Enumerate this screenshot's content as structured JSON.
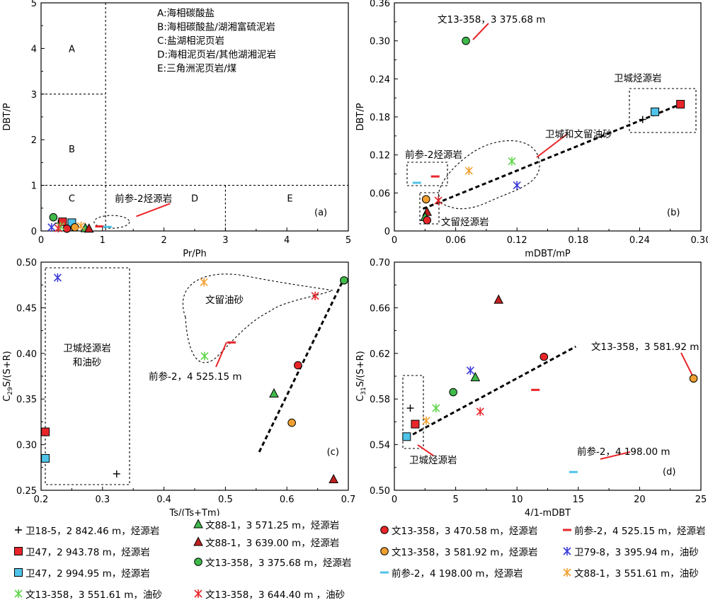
{
  "colors": {
    "wei18": "#000000",
    "wei47_1": "#e8262a",
    "wei47_2": "#4fc3e8",
    "wen88_green": "#3fb94a",
    "wen88_red": "#c0201e",
    "w13_3375": "#3fb94a",
    "w13_3470": "#e8262a",
    "w13_3581": "#f0a030",
    "qs2_4525": "#e8262a",
    "qs2_4198": "#4fc3e8",
    "wei79": "#3a3ad8",
    "w88_3551": "#f0a030",
    "w13_3551": "#5fd64a",
    "w13_3644": "#e8262a"
  },
  "legend": [
    {
      "key": "wei18",
      "marker": "plus",
      "text": "卫18-5，2 842.46 m，烃源岩"
    },
    {
      "key": "wei47_1",
      "marker": "square",
      "text": "卫47，2 943.78 m，烃源岩"
    },
    {
      "key": "wei47_2",
      "marker": "square",
      "text": "卫47，2 994.95 m，烃源岩"
    },
    {
      "key": "w13_3551",
      "marker": "x",
      "text": "文13-358，3 551.61 m，油砂"
    },
    {
      "key": "wen88_green",
      "marker": "triangle",
      "text": "文88-1，3 571.25 m，烃源岩"
    },
    {
      "key": "wen88_red",
      "marker": "triangle",
      "text": "文88-1，3 639.00 m，烃源岩"
    },
    {
      "key": "w13_3375",
      "marker": "circle",
      "text": "文13-358，3 375.68 m，烃源岩"
    },
    {
      "key": "w13_3644",
      "marker": "x",
      "text": "文13-358，3 644.40 m ，油砂"
    },
    {
      "key": "w13_3470",
      "marker": "circle",
      "text": "文13-358，3 470.58 m，烃源岩"
    },
    {
      "key": "w13_3581",
      "marker": "circle",
      "text": "文13-358，3 581.92 m，烃源岩"
    },
    {
      "key": "qs2_4198",
      "marker": "dash",
      "text": "前参-2，4 198.00 m，烃源岩"
    },
    {
      "key": "qs2_4525",
      "marker": "dash",
      "text": "前参-2，4 525.15 m，烃源岩"
    },
    {
      "key": "wei79",
      "marker": "x",
      "text": "卫79-8，3 395.94 m，油砂"
    },
    {
      "key": "w88_3551",
      "marker": "x",
      "text": "文88-1，3 551.61 m，油砂"
    }
  ],
  "chart_data": [
    {
      "panel": "(a)",
      "type": "scatter",
      "xlabel": "Pr/Ph",
      "ylabel": "DBT/P",
      "xlim": [
        0,
        5
      ],
      "ylim": [
        0,
        5
      ],
      "xticks": [
        "0",
        "1",
        "2",
        "3",
        "4",
        "5"
      ],
      "yticks": [
        "0",
        "1",
        "2",
        "3",
        "4",
        "5"
      ],
      "zone_labels": [
        "A",
        "B",
        "C",
        "D",
        "E"
      ],
      "zone_legend": [
        "A:海相碳酸盐",
        "B:海相碳酸盐/湖湘富硫泥岩",
        "C:盐湖相泥页岩",
        "D:海相泥页岩/其他湖湘泥岩",
        "E:三角洲泥页岩/煤"
      ],
      "annotations": [
        "前参-2烃源岩"
      ],
      "points": [
        {
          "key": "wei18",
          "marker": "plus",
          "x": 0.28,
          "y": 0.17
        },
        {
          "key": "wei47_1",
          "marker": "square",
          "x": 0.35,
          "y": 0.2
        },
        {
          "key": "wei47_2",
          "marker": "square",
          "x": 0.5,
          "y": 0.18
        },
        {
          "key": "w13_3375",
          "marker": "circle",
          "x": 0.2,
          "y": 0.3
        },
        {
          "key": "w13_3470",
          "marker": "circle",
          "x": 0.42,
          "y": 0.05
        },
        {
          "key": "w13_3581",
          "marker": "circle",
          "x": 0.55,
          "y": 0.08
        },
        {
          "key": "wen88_green",
          "marker": "triangle",
          "x": 0.72,
          "y": 0.06
        },
        {
          "key": "wen88_red",
          "marker": "triangle",
          "x": 0.78,
          "y": 0.05
        },
        {
          "key": "wei79",
          "marker": "x",
          "x": 0.17,
          "y": 0.08
        },
        {
          "key": "w13_3551",
          "marker": "x",
          "x": 0.32,
          "y": 0.1
        },
        {
          "key": "w13_3644",
          "marker": "x",
          "x": 0.28,
          "y": 0.06
        },
        {
          "key": "w88_3551",
          "marker": "x",
          "x": 0.65,
          "y": 0.11
        },
        {
          "key": "qs2_4525",
          "marker": "dash",
          "x": 0.95,
          "y": 0.1
        },
        {
          "key": "qs2_4198",
          "marker": "dash",
          "x": 1.08,
          "y": 0.09
        }
      ]
    },
    {
      "panel": "(b)",
      "type": "scatter",
      "xlabel": "mDBT/mP",
      "ylabel": "DBT/P",
      "xlim": [
        0,
        0.3
      ],
      "ylim": [
        0,
        0.36
      ],
      "xticks": [
        "0",
        "0.06",
        "0.12",
        "0.18",
        "0.24",
        "0.30"
      ],
      "yticks": [
        "0",
        "0.06",
        "0.12",
        "0.18",
        "0.24",
        "0.30",
        "0.36"
      ],
      "annotations": [
        "文13-358，3 375.68 m",
        "卫城烃源岩",
        "卫城和文留油砂",
        "前参-2烃源岩",
        "文留烃源岩"
      ],
      "trend_line": [
        [
          0.028,
          0.035
        ],
        [
          0.28,
          0.2
        ]
      ],
      "points": [
        {
          "key": "w13_3375",
          "marker": "circle",
          "x": 0.07,
          "y": 0.3
        },
        {
          "key": "wei47_1",
          "marker": "square",
          "x": 0.28,
          "y": 0.2
        },
        {
          "key": "wei47_2",
          "marker": "square",
          "x": 0.255,
          "y": 0.188
        },
        {
          "key": "wei18",
          "marker": "plus",
          "x": 0.243,
          "y": 0.176
        },
        {
          "key": "w13_3551",
          "marker": "x",
          "x": 0.115,
          "y": 0.11
        },
        {
          "key": "w88_3551",
          "marker": "x",
          "x": 0.073,
          "y": 0.095
        },
        {
          "key": "wei79",
          "marker": "x",
          "x": 0.12,
          "y": 0.072
        },
        {
          "key": "w13_3644",
          "marker": "x",
          "x": 0.043,
          "y": 0.048
        },
        {
          "key": "w13_3581",
          "marker": "circle",
          "x": 0.031,
          "y": 0.05
        },
        {
          "key": "wen88_red",
          "marker": "triangle",
          "x": 0.032,
          "y": 0.03
        },
        {
          "key": "wen88_green",
          "marker": "triangle",
          "x": 0.03,
          "y": 0.022
        },
        {
          "key": "w13_3470",
          "marker": "circle",
          "x": 0.032,
          "y": 0.017
        },
        {
          "key": "qs2_4525",
          "marker": "dash",
          "x": 0.04,
          "y": 0.086
        },
        {
          "key": "qs2_4198",
          "marker": "dash",
          "x": 0.022,
          "y": 0.076
        }
      ]
    },
    {
      "panel": "(c)",
      "type": "scatter",
      "xlabel": "Ts/(Ts+Tm)",
      "ylabel": "C29S/(S+R)",
      "ylabel_main": "C",
      "ylabel_sub": "29",
      "ylabel_rest": "S/(S+R)",
      "xlim": [
        0.2,
        0.7
      ],
      "ylim": [
        0.25,
        0.5
      ],
      "xticks": [
        "0.2",
        "0.3",
        "0.4",
        "0.5",
        "0.6",
        "0.7"
      ],
      "yticks": [
        "0.25",
        "0.30",
        "0.35",
        "0.40",
        "0.45",
        "0.50"
      ],
      "annotations": [
        "文留油砂",
        "卫城烃源岩",
        "和油砂",
        "前参-2，4 525.15 m"
      ],
      "trend_line": [
        [
          0.555,
          0.292
        ],
        [
          0.69,
          0.478
        ]
      ],
      "points": [
        {
          "key": "wei79",
          "marker": "x",
          "x": 0.227,
          "y": 0.483
        },
        {
          "key": "wei47_1",
          "marker": "square",
          "x": 0.207,
          "y": 0.314
        },
        {
          "key": "wei47_2",
          "marker": "square",
          "x": 0.207,
          "y": 0.285
        },
        {
          "key": "wei18",
          "marker": "plus",
          "x": 0.323,
          "y": 0.268
        },
        {
          "key": "w88_3551",
          "marker": "x",
          "x": 0.465,
          "y": 0.478
        },
        {
          "key": "w13_3551",
          "marker": "x",
          "x": 0.466,
          "y": 0.397
        },
        {
          "key": "w13_3644",
          "marker": "x",
          "x": 0.646,
          "y": 0.463
        },
        {
          "key": "w13_3375",
          "marker": "circle",
          "x": 0.693,
          "y": 0.48
        },
        {
          "key": "w13_3470",
          "marker": "circle",
          "x": 0.618,
          "y": 0.387
        },
        {
          "key": "wen88_green",
          "marker": "triangle",
          "x": 0.579,
          "y": 0.356
        },
        {
          "key": "w13_3581",
          "marker": "circle",
          "x": 0.608,
          "y": 0.324
        },
        {
          "key": "wen88_red",
          "marker": "triangle",
          "x": 0.676,
          "y": 0.262
        },
        {
          "key": "qs2_4525",
          "marker": "dash",
          "x": 0.51,
          "y": 0.412
        }
      ]
    },
    {
      "panel": "(d)",
      "type": "scatter",
      "xlabel": "4/1-mDBT",
      "ylabel": "C31S/(S+R)",
      "ylabel_main": "C",
      "ylabel_sub": "31",
      "ylabel_rest": "S/(S+R)",
      "xlim": [
        0,
        25
      ],
      "ylim": [
        0.5,
        0.7
      ],
      "xticks": [
        "0",
        "5",
        "10",
        "15",
        "20",
        "25"
      ],
      "yticks": [
        "0.50",
        "0.54",
        "0.58",
        "0.62",
        "0.66",
        "0.70"
      ],
      "annotations": [
        "文13-358，3 581.92 m",
        "卫城烃源岩",
        "前参-2，4 198.00 m"
      ],
      "trend_line": [
        [
          1.0,
          0.546
        ],
        [
          14.8,
          0.626
        ]
      ],
      "points": [
        {
          "key": "wen88_red",
          "marker": "triangle",
          "x": 8.5,
          "y": 0.667
        },
        {
          "key": "w13_3470",
          "marker": "circle",
          "x": 12.2,
          "y": 0.617
        },
        {
          "key": "wei79",
          "marker": "x",
          "x": 6.2,
          "y": 0.605
        },
        {
          "key": "wen88_green",
          "marker": "triangle",
          "x": 6.6,
          "y": 0.599
        },
        {
          "key": "w13_3375",
          "marker": "circle",
          "x": 4.8,
          "y": 0.586
        },
        {
          "key": "w13_3551",
          "marker": "x",
          "x": 3.4,
          "y": 0.572
        },
        {
          "key": "w13_3644",
          "marker": "x",
          "x": 7.0,
          "y": 0.569
        },
        {
          "key": "w88_3551",
          "marker": "x",
          "x": 2.6,
          "y": 0.561
        },
        {
          "key": "wei18",
          "marker": "plus",
          "x": 1.3,
          "y": 0.572
        },
        {
          "key": "wei47_1",
          "marker": "square",
          "x": 1.7,
          "y": 0.558
        },
        {
          "key": "wei47_2",
          "marker": "square",
          "x": 1.0,
          "y": 0.547
        },
        {
          "key": "w13_3581",
          "marker": "circle",
          "x": 24.4,
          "y": 0.598
        },
        {
          "key": "qs2_4525",
          "marker": "dash",
          "x": 11.5,
          "y": 0.588
        },
        {
          "key": "qs2_4198",
          "marker": "dash",
          "x": 14.6,
          "y": 0.516
        }
      ]
    }
  ]
}
